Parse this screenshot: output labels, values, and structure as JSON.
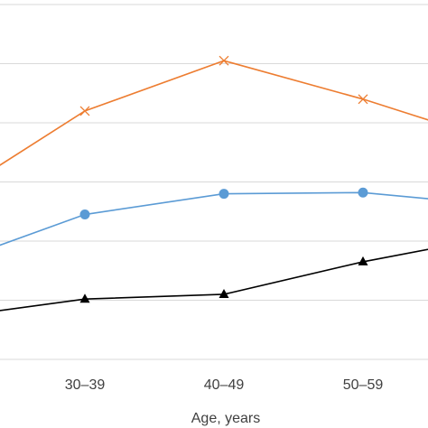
{
  "chart_data": {
    "type": "line",
    "categories": [
      "",
      "30–39",
      "40–49",
      "50–59",
      ""
    ],
    "xlabel": "Age, years",
    "ylim": [
      0,
      6
    ],
    "grid": true,
    "series": [
      {
        "color": "#ED7D31",
        "marker": "x",
        "values": [
          2.7,
          4.2,
          5.05,
          4.4,
          3.65
        ]
      },
      {
        "color": "#5B9BD5",
        "marker": "circle",
        "values": [
          1.6,
          2.45,
          2.8,
          2.82,
          2.6
        ]
      },
      {
        "color": "#000000",
        "marker": "triangle",
        "values": [
          0.7,
          1.02,
          1.1,
          1.65,
          2.1
        ]
      }
    ]
  }
}
